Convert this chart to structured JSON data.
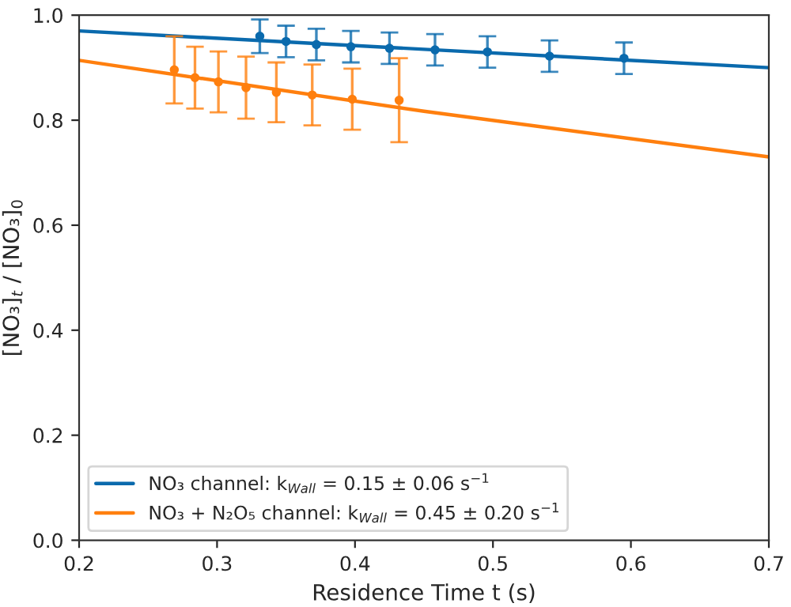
{
  "chart_data": {
    "type": "scatter",
    "xlabel": "Residence Time t (s)",
    "ylabel": "[NO₃]$_{t}$ / [NO₃]$_{0}$",
    "xlim": [
      0.2,
      0.7
    ],
    "xticks": [
      0.2,
      0.3,
      0.4,
      0.5,
      0.6,
      0.7
    ],
    "ylim": [
      0,
      1
    ],
    "yticks": [
      {
        "value": 0,
        "label": "0.0"
      },
      0.2,
      0.4,
      0.6,
      0.8,
      {
        "value": 1,
        "label": "1.0"
      }
    ],
    "grid": false,
    "legend": "bottom left",
    "series": [
      {
        "marker": "circle",
        "color": "#0a6aad",
        "x": [
          0.331,
          0.35,
          0.372,
          0.397,
          0.425,
          0.458,
          0.496,
          0.541,
          0.595
        ],
        "values": [
          0.96,
          0.95,
          0.944,
          0.94,
          0.937,
          0.934,
          0.93,
          0.922,
          0.918
        ],
        "errors": [
          0.032,
          0.03,
          0.03,
          0.03,
          0.03,
          0.03,
          0.03,
          0.03,
          0.03
        ]
      },
      {
        "marker": "circle",
        "color": "#ff7f0e",
        "x": [
          0.269,
          0.284,
          0.301,
          0.321,
          0.343,
          0.369,
          0.398,
          0.432
        ],
        "values": [
          0.896,
          0.881,
          0.873,
          0.862,
          0.853,
          0.848,
          0.84,
          0.838
        ],
        "errors": [
          0.064,
          0.059,
          0.058,
          0.059,
          0.057,
          0.058,
          0.058,
          0.08
        ]
      },
      {
        "type": "line",
        "name": "NO₃ channel: k$_{Wall}$ = 0.15 ± 0.06 s$^{−1}$",
        "color": "#0a6aad",
        "x": [
          0.2,
          0.45,
          0.7
        ],
        "values": [
          0.97,
          0.935,
          0.9
        ]
      },
      {
        "type": "line",
        "name": "NO₃ + N₂O₅ channel: k$_{Wall}$ = 0.45 ± 0.20 s$^{−1}$",
        "color": "#ff7f0e",
        "x": [
          0.2,
          0.45,
          0.7
        ],
        "values": [
          0.914,
          0.817,
          0.73
        ]
      }
    ]
  }
}
